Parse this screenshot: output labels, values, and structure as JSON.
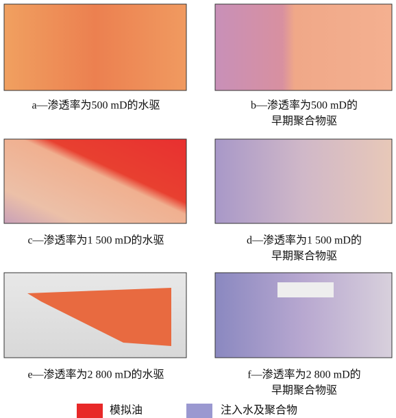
{
  "panels": [
    {
      "caption": [
        "a—渗透率为500 mD的水驱"
      ]
    },
    {
      "caption": [
        "b—渗透率为500 mD的",
        "早期聚合物驱"
      ]
    },
    {
      "caption": [
        "c—渗透率为1 500 mD的水驱"
      ]
    },
    {
      "caption": [
        "d—渗透率为1 500 mD的",
        "早期聚合物驱"
      ]
    },
    {
      "caption": [
        "e—渗透率为2 800 mD的水驱"
      ]
    },
    {
      "caption": [
        "f—渗透率为2 800 mD的",
        "早期聚合物驱"
      ]
    }
  ],
  "legend": [
    {
      "label": "模拟油"
    },
    {
      "label": "注入水及聚合物"
    }
  ]
}
